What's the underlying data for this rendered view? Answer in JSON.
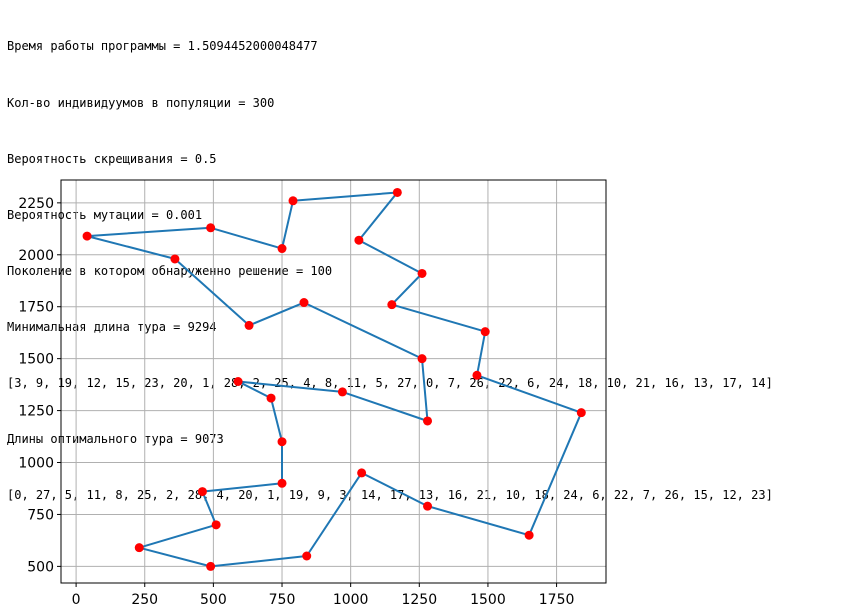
{
  "console": {
    "lines": [
      "Время работы программы = 1.5094452000048477",
      "Кол-во индивидуумов в популяции = 300",
      "Вероятность скрещивания = 0.5",
      "Вероятность мутации = 0.001",
      "Поколение в котором обнаруженно решение = 100",
      "Минимальная длина тура = 9294",
      "[3, 9, 19, 12, 15, 23, 20, 1, 28, 2, 25, 4, 8, 11, 5, 27, 0, 7, 26, 22, 6, 24, 18, 10, 21, 16, 13, 17, 14]",
      "Длины оптимального тура = 9073",
      "[0, 27, 5, 11, 8, 25, 2, 28, 4, 20, 1, 19, 9, 3, 14, 17, 13, 16, 21, 10, 18, 24, 6, 22, 7, 26, 15, 12, 23]"
    ]
  },
  "chart_data": {
    "type": "line",
    "title": "",
    "xlabel": "",
    "ylabel": "",
    "xlim": [
      -55,
      1930
    ],
    "ylim": [
      420,
      2360
    ],
    "xticks": [
      0,
      250,
      500,
      750,
      1000,
      1250,
      1500,
      1750
    ],
    "yticks": [
      500,
      750,
      1000,
      1250,
      1500,
      1750,
      2000,
      2250
    ],
    "xtick_labels": [
      "0",
      "250",
      "500",
      "750",
      "1000",
      "1250",
      "1500",
      "1750"
    ],
    "ytick_labels": [
      "500",
      "750",
      "1000",
      "1250",
      "1500",
      "1750",
      "2000",
      "2250"
    ],
    "grid": true,
    "line_color": "#1f77b4",
    "marker_color": "#ff0000",
    "tour": [
      {
        "x": 40,
        "y": 2090
      },
      {
        "x": 490,
        "y": 2130
      },
      {
        "x": 750,
        "y": 2030
      },
      {
        "x": 790,
        "y": 2260
      },
      {
        "x": 1170,
        "y": 2300
      },
      {
        "x": 1030,
        "y": 2070
      },
      {
        "x": 1260,
        "y": 1910
      },
      {
        "x": 1150,
        "y": 1760
      },
      {
        "x": 1490,
        "y": 1630
      },
      {
        "x": 1460,
        "y": 1420
      },
      {
        "x": 1840,
        "y": 1240
      },
      {
        "x": 1650,
        "y": 650
      },
      {
        "x": 1280,
        "y": 790
      },
      {
        "x": 1040,
        "y": 950
      },
      {
        "x": 840,
        "y": 550
      },
      {
        "x": 490,
        "y": 500
      },
      {
        "x": 230,
        "y": 590
      },
      {
        "x": 510,
        "y": 700
      },
      {
        "x": 460,
        "y": 860
      },
      {
        "x": 750,
        "y": 900
      },
      {
        "x": 750,
        "y": 1100
      },
      {
        "x": 710,
        "y": 1310
      },
      {
        "x": 590,
        "y": 1390
      },
      {
        "x": 970,
        "y": 1340
      },
      {
        "x": 1280,
        "y": 1200
      },
      {
        "x": 1260,
        "y": 1500
      },
      {
        "x": 830,
        "y": 1770
      },
      {
        "x": 630,
        "y": 1660
      },
      {
        "x": 360,
        "y": 1980
      },
      {
        "x": 40,
        "y": 2090
      }
    ]
  }
}
